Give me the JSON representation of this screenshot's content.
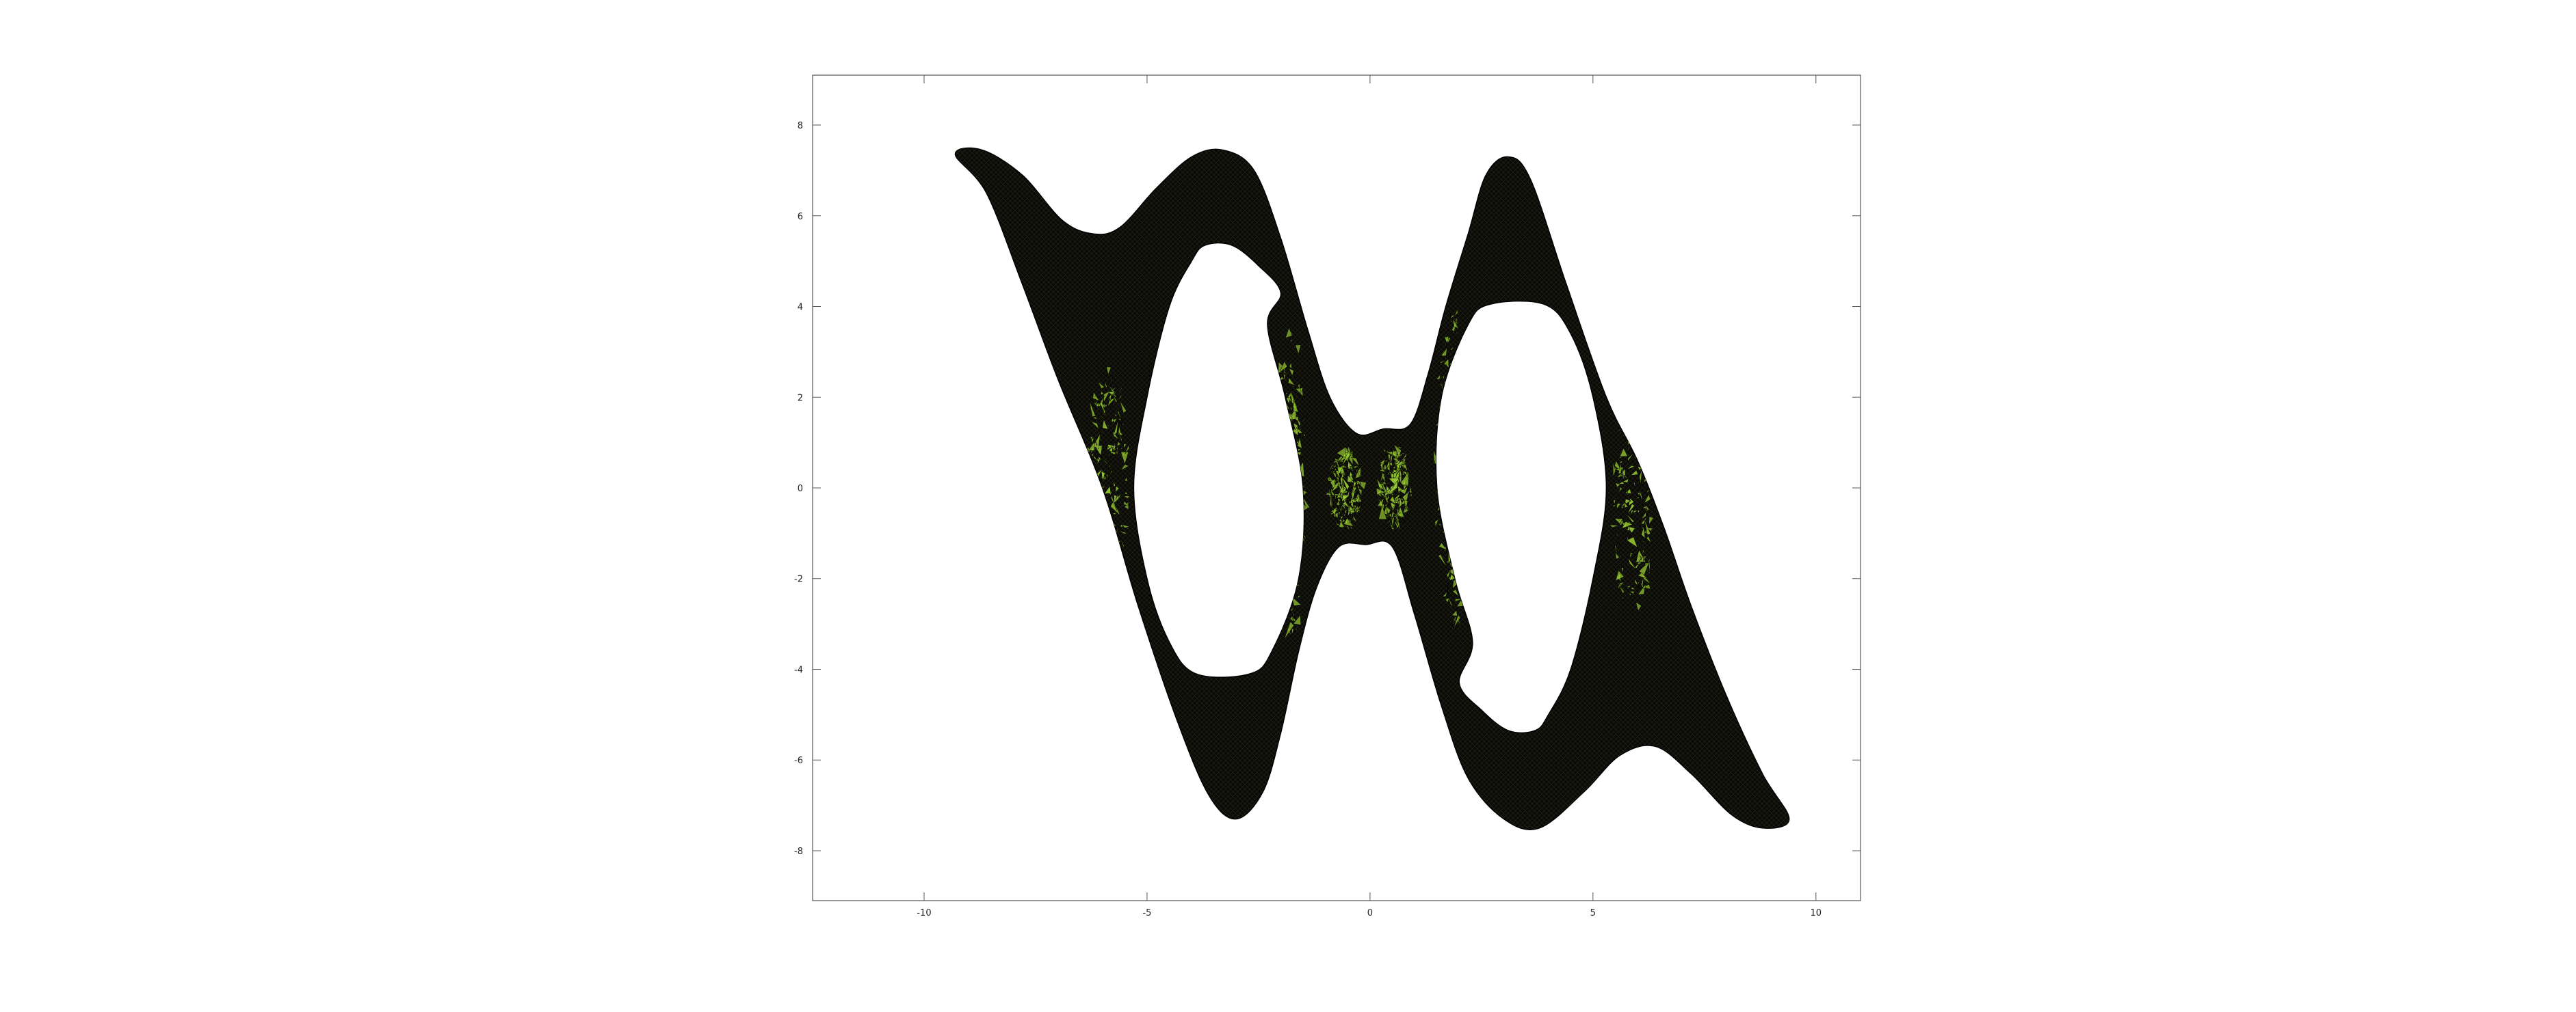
{
  "chart_data": {
    "type": "area",
    "title": "",
    "xlabel": "",
    "ylabel": "",
    "xlim": [
      -12.5,
      11
    ],
    "ylim": [
      -9.1,
      9.1
    ],
    "grid": false,
    "legend": "none",
    "x_ticks": [
      -10,
      -5,
      0,
      5,
      10
    ],
    "x_tick_labels": [
      "-10",
      "-5",
      "0",
      "5",
      "10"
    ],
    "y_ticks": [
      8,
      6,
      4,
      2,
      0,
      -2,
      -4,
      -6,
      -8
    ],
    "y_tick_labels": [
      "8",
      "6",
      "4",
      "2",
      "0",
      "-2",
      "-4",
      "-6",
      "-8"
    ],
    "colors": {
      "mesh_fill": "#9acd32",
      "mesh_edge": "#000000",
      "axes": "#555555"
    },
    "outer_boundary": [
      [
        -9.3,
        7.35
      ],
      [
        -8.7,
        7.45
      ],
      [
        -7.8,
        6.9
      ],
      [
        -6.9,
        5.9
      ],
      [
        -6.2,
        5.6
      ],
      [
        -5.6,
        5.75
      ],
      [
        -4.8,
        6.6
      ],
      [
        -4.0,
        7.3
      ],
      [
        -3.3,
        7.45
      ],
      [
        -2.6,
        7.0
      ],
      [
        -2.0,
        5.5
      ],
      [
        -1.4,
        3.5
      ],
      [
        -0.9,
        2.0
      ],
      [
        -0.3,
        1.2
      ],
      [
        0.3,
        1.3
      ],
      [
        0.9,
        1.4
      ],
      [
        1.3,
        2.5
      ],
      [
        1.7,
        4.0
      ],
      [
        2.2,
        5.6
      ],
      [
        2.6,
        6.9
      ],
      [
        3.1,
        7.3
      ],
      [
        3.6,
        6.8
      ],
      [
        4.4,
        4.5
      ],
      [
        5.3,
        2.0
      ],
      [
        6.0,
        0.6
      ],
      [
        6.6,
        -0.9
      ],
      [
        7.2,
        -2.6
      ],
      [
        8.0,
        -4.6
      ],
      [
        8.8,
        -6.3
      ],
      [
        9.4,
        -7.3
      ],
      [
        8.8,
        -7.5
      ],
      [
        8.1,
        -7.2
      ],
      [
        7.2,
        -6.3
      ],
      [
        6.4,
        -5.7
      ],
      [
        5.6,
        -5.9
      ],
      [
        4.8,
        -6.7
      ],
      [
        3.8,
        -7.5
      ],
      [
        3.0,
        -7.3
      ],
      [
        2.2,
        -6.4
      ],
      [
        1.6,
        -4.8
      ],
      [
        1.0,
        -2.8
      ],
      [
        0.5,
        -1.3
      ],
      [
        -0.1,
        -1.25
      ],
      [
        -0.7,
        -1.3
      ],
      [
        -1.2,
        -2.2
      ],
      [
        -1.6,
        -3.6
      ],
      [
        -2.0,
        -5.4
      ],
      [
        -2.4,
        -6.7
      ],
      [
        -3.0,
        -7.3
      ],
      [
        -3.6,
        -6.8
      ],
      [
        -4.3,
        -5.2
      ],
      [
        -5.2,
        -2.6
      ],
      [
        -6.0,
        0.0
      ],
      [
        -7.0,
        2.4
      ],
      [
        -7.8,
        4.5
      ],
      [
        -8.6,
        6.5
      ]
    ],
    "holes": [
      {
        "name": "left-hole",
        "points": [
          [
            -3.7,
            5.35
          ],
          [
            -3.1,
            5.35
          ],
          [
            -2.5,
            4.9
          ],
          [
            -2.0,
            4.3
          ],
          [
            -2.3,
            3.6
          ],
          [
            -1.9,
            2.0
          ],
          [
            -1.5,
            0.0
          ],
          [
            -1.6,
            -2.0
          ],
          [
            -2.2,
            -3.6
          ],
          [
            -2.7,
            -4.1
          ],
          [
            -3.9,
            -4.1
          ],
          [
            -4.5,
            -3.4
          ],
          [
            -5.0,
            -2.0
          ],
          [
            -5.3,
            0.0
          ],
          [
            -5.0,
            2.0
          ],
          [
            -4.5,
            4.0
          ],
          [
            -4.0,
            5.0
          ]
        ]
      },
      {
        "name": "right-hole",
        "points": [
          [
            3.7,
            -5.35
          ],
          [
            3.1,
            -5.35
          ],
          [
            2.5,
            -4.9
          ],
          [
            2.0,
            -4.3
          ],
          [
            2.3,
            -3.4
          ],
          [
            1.9,
            -2.0
          ],
          [
            1.5,
            0.0
          ],
          [
            1.6,
            2.0
          ],
          [
            2.2,
            3.6
          ],
          [
            2.7,
            4.05
          ],
          [
            3.9,
            4.05
          ],
          [
            4.5,
            3.4
          ],
          [
            5.0,
            2.0
          ],
          [
            5.3,
            0.0
          ],
          [
            5.0,
            -2.0
          ],
          [
            4.5,
            -4.0
          ],
          [
            4.0,
            -5.0
          ]
        ]
      }
    ],
    "green_regions": [
      {
        "name": "left-outer-band",
        "center": [
          -5.9,
          0.2
        ],
        "radius": [
          0.45,
          2.6
        ]
      },
      {
        "name": "left-inner-band",
        "center": [
          -1.8,
          0.0
        ],
        "radius": [
          0.35,
          3.4
        ]
      },
      {
        "name": "bridge-left",
        "center": [
          -0.55,
          0.0
        ],
        "radius": [
          0.35,
          0.9
        ]
      },
      {
        "name": "bridge-right",
        "center": [
          0.55,
          0.0
        ],
        "radius": [
          0.35,
          0.9
        ]
      },
      {
        "name": "right-inner-band",
        "center": [
          1.85,
          0.4
        ],
        "radius": [
          0.35,
          3.6
        ]
      },
      {
        "name": "right-outer-band",
        "center": [
          5.9,
          -0.3
        ],
        "radius": [
          0.45,
          2.6
        ]
      }
    ]
  }
}
